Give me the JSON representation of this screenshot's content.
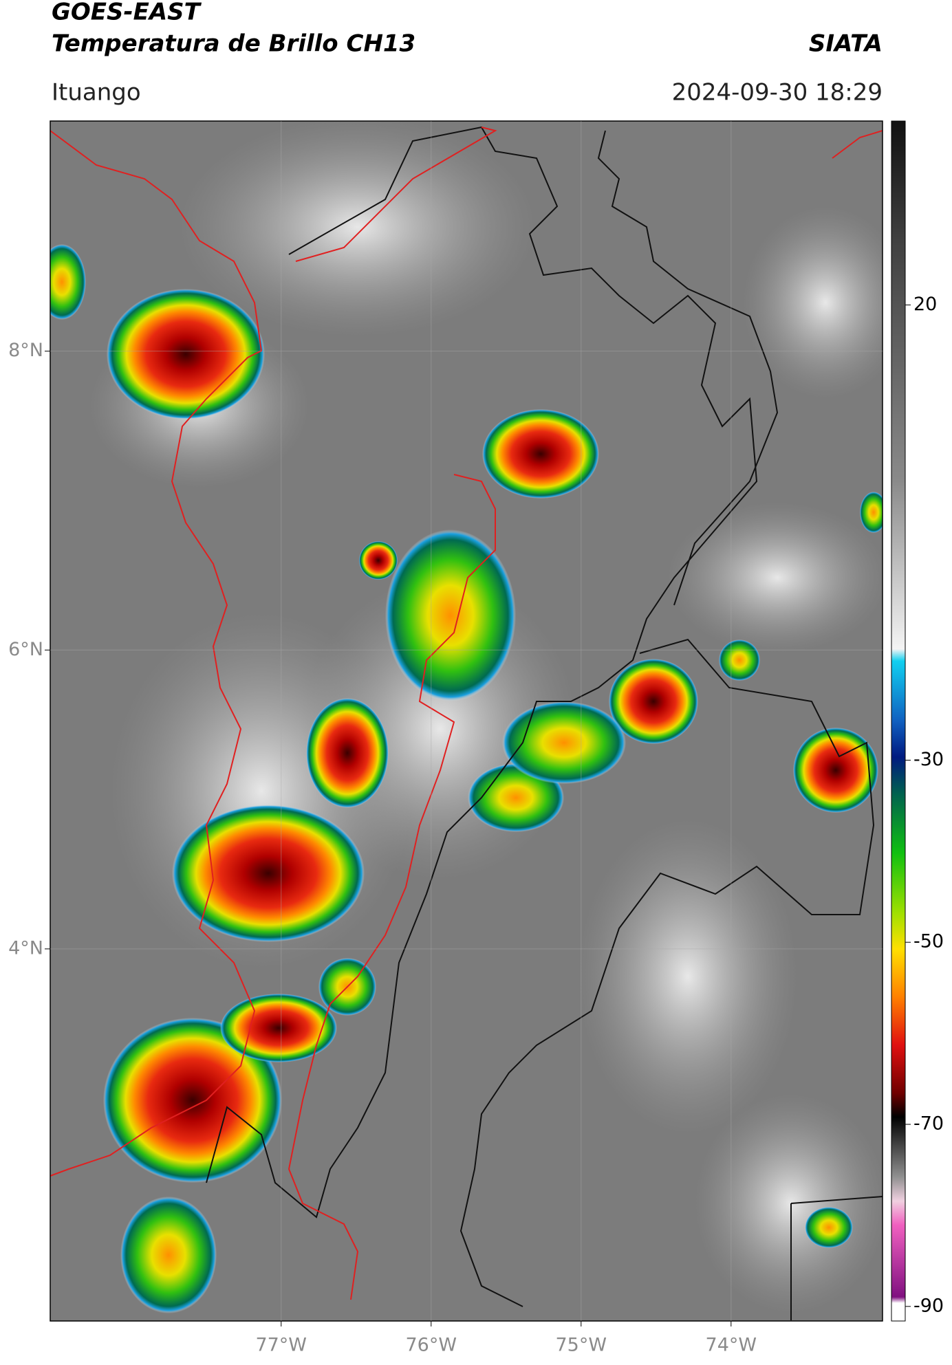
{
  "header": {
    "satellite": "GOES-EAST",
    "product": "Temperatura de Brillo CH13",
    "source": "SIATA",
    "location": "Ituango",
    "datetime": "2024-09-30 18:29"
  },
  "map": {
    "type": "map",
    "xlim": [
      -78.54,
      -72.99
    ],
    "ylim": [
      1.51,
      9.54
    ],
    "xticks": [
      {
        "value": -77,
        "label": "77°W"
      },
      {
        "value": -76,
        "label": "76°W"
      },
      {
        "value": -75,
        "label": "75°W"
      },
      {
        "value": -74,
        "label": "74°W"
      }
    ],
    "yticks": [
      {
        "value": 4,
        "label": "4°N"
      },
      {
        "value": 6,
        "label": "6°N"
      },
      {
        "value": 8,
        "label": "8°N"
      }
    ],
    "grid": true
  },
  "colorbar": {
    "lim": [
      -91.6,
      40.2
    ],
    "ticks": [
      20,
      -30,
      -50,
      -70,
      -90
    ]
  }
}
